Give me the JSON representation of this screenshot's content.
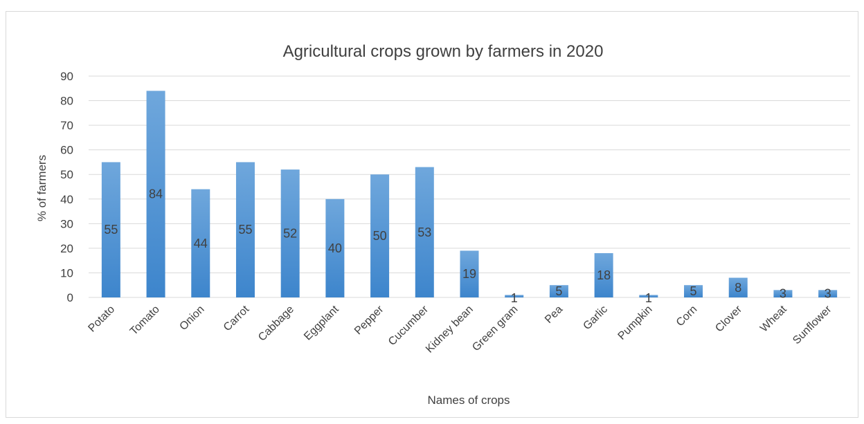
{
  "chart_data": {
    "type": "bar",
    "title": "Agricultural crops grown by farmers in 2020",
    "xlabel": "Names of crops",
    "ylabel": "% of farmers",
    "ylim": [
      0,
      90
    ],
    "yticks": [
      0,
      10,
      20,
      30,
      40,
      50,
      60,
      70,
      80,
      90
    ],
    "grid": true,
    "legend": "none",
    "categories": [
      "Potato",
      "Tomato",
      "Onion",
      "Carrot",
      "Cabbage",
      "Eggplant",
      "Pepper",
      "Cucumber",
      "Kidney bean",
      "Green gram",
      "Pea",
      "Garlic",
      "Pumpkin",
      "Corn",
      "Clover",
      "Wheat",
      "Sunflower"
    ],
    "values": [
      55,
      84,
      44,
      55,
      52,
      40,
      50,
      53,
      19,
      1,
      5,
      18,
      1,
      5,
      8,
      3,
      3
    ],
    "colors": {
      "bar_top": "#6fa7dc",
      "bar_bottom": "#3d85cc",
      "grid": "#d9d9d9",
      "text": "#404040"
    }
  }
}
